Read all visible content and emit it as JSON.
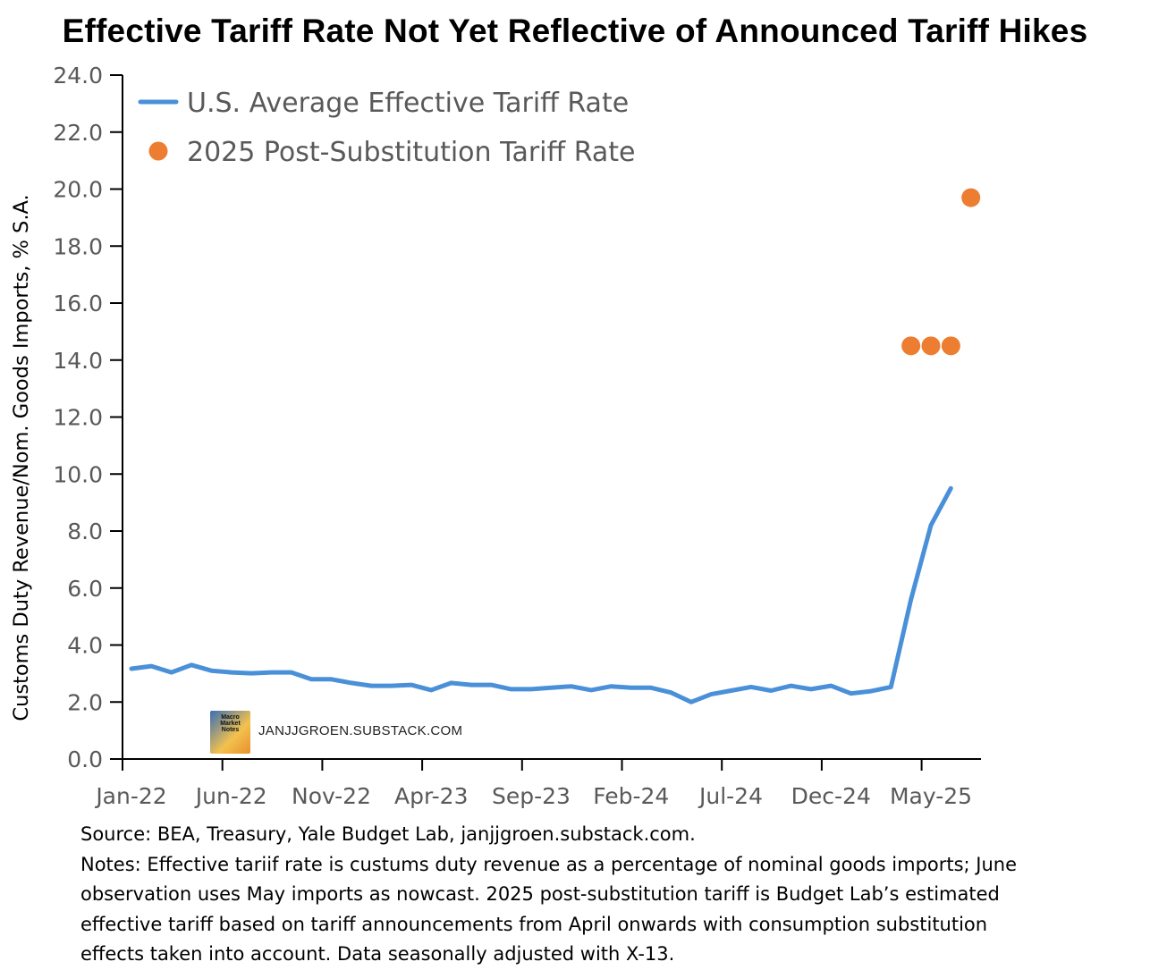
{
  "chart_data": {
    "type": "line",
    "title": "Effective Tariff Rate Not Yet Reflective of Announced Tariff Hikes",
    "ylabel": "Customs Duty Revenue/Nom. Goods Imports, % S.A.",
    "xlabel": "",
    "ylim": [
      0,
      24
    ],
    "yticks": [
      "0.0",
      "2.0",
      "4.0",
      "6.0",
      "8.0",
      "10.0",
      "12.0",
      "14.0",
      "16.0",
      "18.0",
      "20.0",
      "22.0",
      "24.0"
    ],
    "xtick_labels": [
      "Jan-22",
      "Jun-22",
      "Nov-22",
      "Apr-23",
      "Sep-23",
      "Feb-24",
      "Jul-24",
      "Dec-24",
      "May-25"
    ],
    "legend_position": "top-left",
    "series": [
      {
        "name": "U.S. Average Effective Tariff Rate",
        "kind": "line",
        "color": "#4A90D9",
        "start": "Jan-22",
        "values": [
          3.17,
          3.26,
          3.04,
          3.3,
          3.1,
          3.04,
          3.01,
          3.04,
          3.04,
          2.8,
          2.8,
          2.67,
          2.57,
          2.57,
          2.6,
          2.42,
          2.67,
          2.6,
          2.6,
          2.45,
          2.45,
          2.5,
          2.55,
          2.42,
          2.55,
          2.5,
          2.5,
          2.33,
          2.0,
          2.27,
          2.4,
          2.53,
          2.4,
          2.57,
          2.45,
          2.57,
          2.3,
          2.38,
          2.53,
          5.6,
          8.2,
          9.5
        ]
      },
      {
        "name": "2025 Post-Substitution Tariff Rate",
        "kind": "scatter",
        "color": "#ED7D31",
        "points": [
          {
            "month": "Apr-25",
            "value": 14.5
          },
          {
            "month": "May-25",
            "value": 14.5
          },
          {
            "month": "Jun-25",
            "value": 14.5
          },
          {
            "month": "Jul-25",
            "value": 19.7
          }
        ]
      }
    ]
  },
  "watermark": {
    "logo_text": "Macro Market Notes",
    "site": "JANJJGROEN.SUBSTACK.COM"
  },
  "notes": [
    "Source: BEA, Treasury, Yale Budget Lab, janjjgroen.substack.com.",
    "Notes: Effective tariif rate is custums duty revenue as a percentage of nominal goods imports; June",
    "observation uses May imports as nowcast. 2025 post-substitution tariff is Budget Lab’s estimated",
    "effective tariff based on tariff announcements from April onwards with consumption substitution",
    "effects taken into account. Data seasonally adjusted with X-13."
  ]
}
